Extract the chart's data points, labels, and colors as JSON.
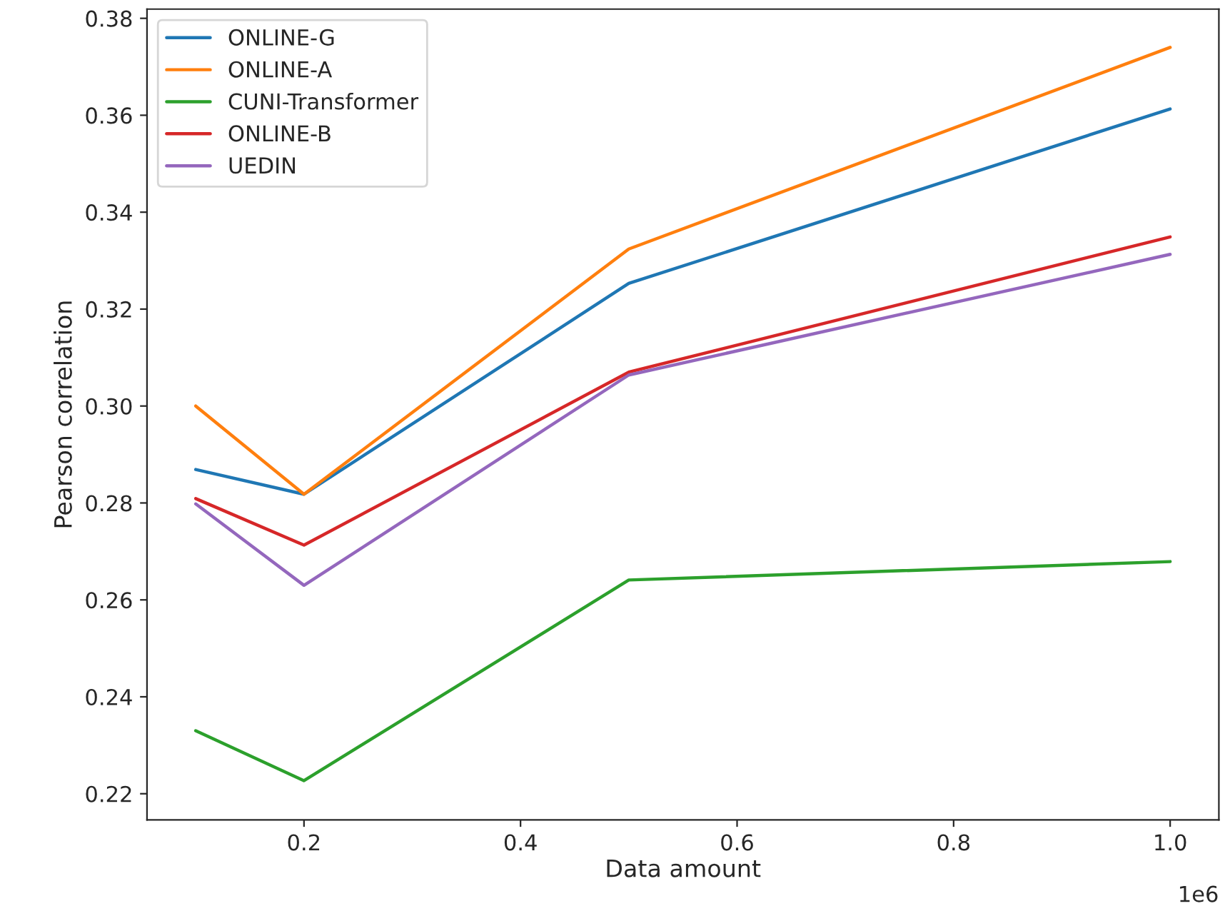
{
  "chart_data": {
    "type": "line",
    "xlabel": "Data amount",
    "ylabel": "Pearson correlation",
    "x": [
      0.1,
      0.2,
      0.5,
      1.0
    ],
    "series": [
      {
        "name": "ONLINE-G",
        "color": "#1f77b4",
        "values": [
          0.2869,
          0.2818,
          0.3253,
          0.3613
        ]
      },
      {
        "name": "ONLINE-A",
        "color": "#ff7f0e",
        "values": [
          0.3,
          0.2818,
          0.3324,
          0.374
        ]
      },
      {
        "name": "CUNI-Transformer",
        "color": "#2ca02c",
        "values": [
          0.233,
          0.2227,
          0.2641,
          0.2679
        ]
      },
      {
        "name": "ONLINE-B",
        "color": "#d62728",
        "values": [
          0.2809,
          0.2713,
          0.307,
          0.3349
        ]
      },
      {
        "name": "UEDIN",
        "color": "#9467bd",
        "values": [
          0.2798,
          0.263,
          0.3064,
          0.3313
        ]
      }
    ],
    "xlim": [
      0.055,
      1.045
    ],
    "xticks": [
      0.2,
      0.4,
      0.6,
      0.8,
      {
        "value": 1.0,
        "label": "1.0"
      }
    ],
    "annotations": [
      "1e6"
    ],
    "ylim": [
      0.2146,
      0.3819
    ],
    "yticks": [
      {
        "value": 0.22,
        "label": "0.22"
      },
      {
        "value": 0.24,
        "label": "0.24"
      },
      {
        "value": 0.26,
        "label": "0.26"
      },
      {
        "value": 0.28,
        "label": "0.28"
      },
      {
        "value": 0.3,
        "label": "0.30"
      },
      {
        "value": 0.32,
        "label": "0.32"
      },
      {
        "value": 0.34,
        "label": "0.34"
      },
      {
        "value": 0.36,
        "label": "0.36"
      },
      {
        "value": 0.38,
        "label": "0.38"
      }
    ],
    "legend": "top left",
    "grid": false
  }
}
